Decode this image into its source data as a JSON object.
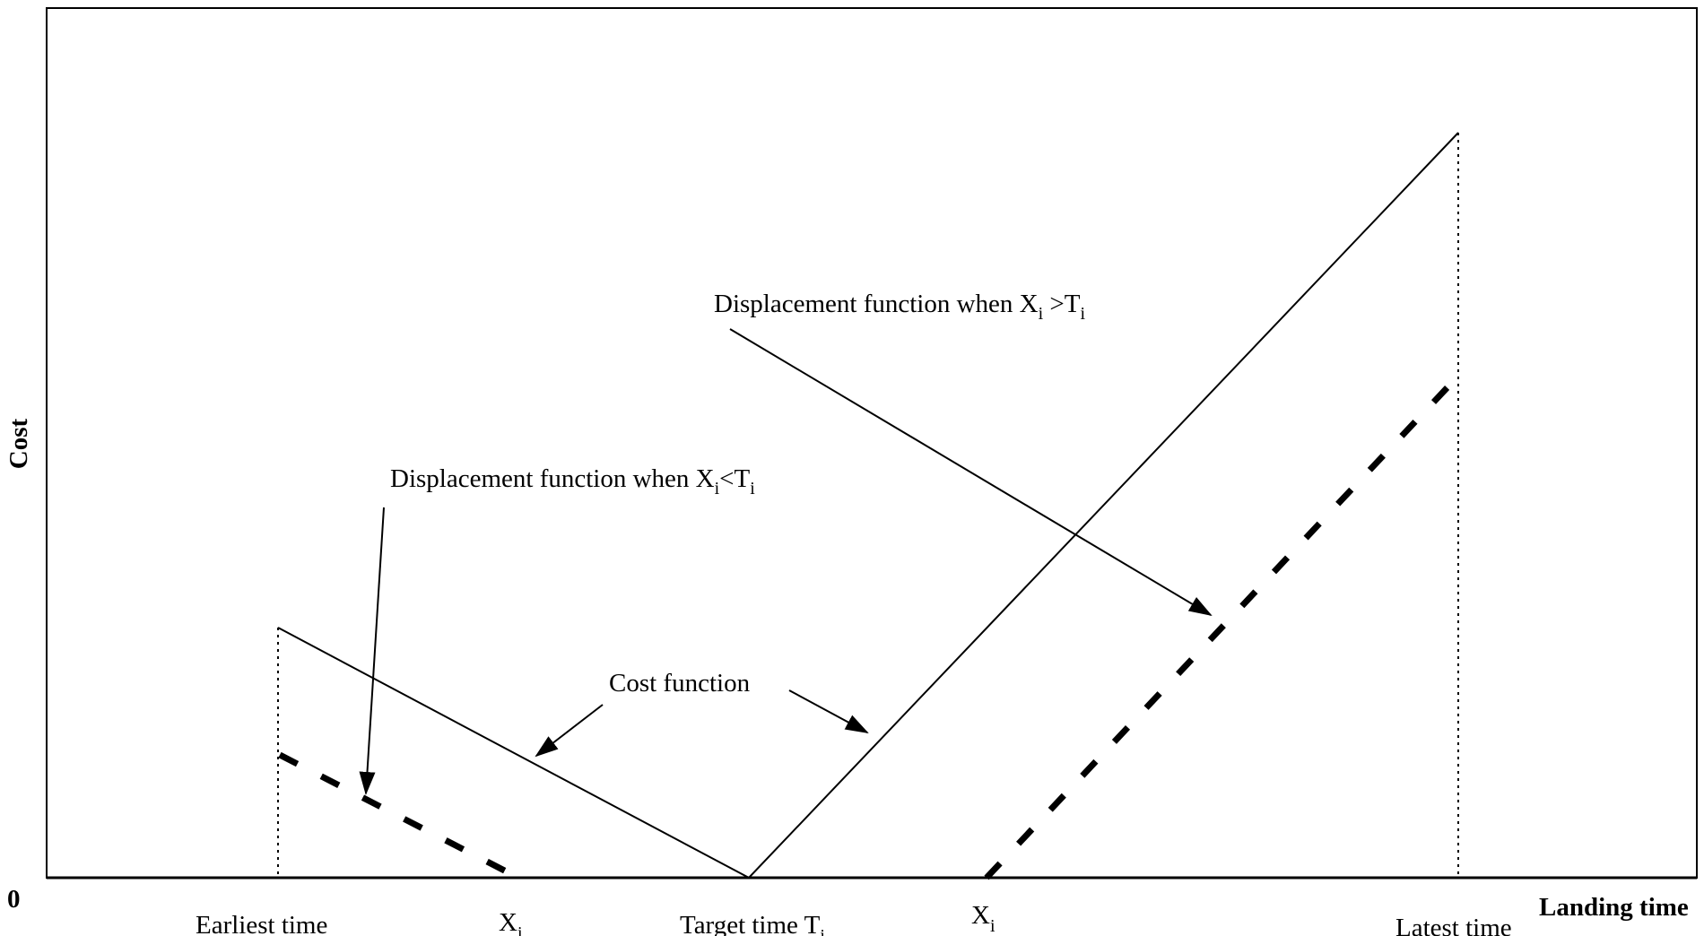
{
  "axes": {
    "y_label": "Cost",
    "x_label": "Landing time",
    "origin_label": "0"
  },
  "x_ticks": {
    "earliest": "Earliest time",
    "x_left_main": "X",
    "x_left_sub": "i",
    "target_main": "Target time T",
    "target_sub": "i",
    "x_right_main": "X",
    "x_right_sub": "i",
    "latest": "Latest time"
  },
  "annotations": {
    "disp_late": {
      "prefix": "Displacement function when X",
      "sub1": "i",
      "mid": " >T",
      "sub2": "i"
    },
    "disp_early": {
      "prefix": "Displacement function when X",
      "sub1": "i",
      "mid": "<T",
      "sub2": "i"
    },
    "cost": "Cost function"
  },
  "legend": {
    "cost_line": "solid",
    "displacement_line": "dashed"
  }
}
